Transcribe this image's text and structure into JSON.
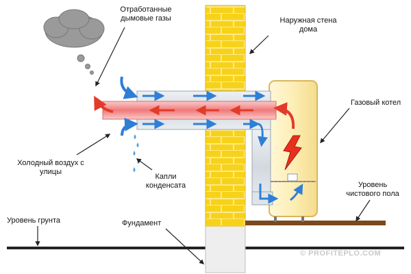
{
  "labels": {
    "exhaust_gases": "Отработанные\nдымовые газы",
    "outer_wall": "Наружная стена\nдома",
    "gas_boiler": "Газовый котел",
    "cold_air": "Холодный воздух с\nулицы",
    "condensate": "Капли\nконденсата",
    "floor_level": "Уровень\nчистового пола",
    "ground_level": "Уровень грунта",
    "foundation": "Фундамент"
  },
  "watermark": "© PROFITEPLO.COM",
  "colors": {
    "brick": "#f7d21a",
    "brick_mortar": "#ffe98a",
    "hot_gas": "#e23b2b",
    "cold_air": "#2f7fd6",
    "boiler_body": "#fdf3c4",
    "flame": "#e8301f"
  }
}
